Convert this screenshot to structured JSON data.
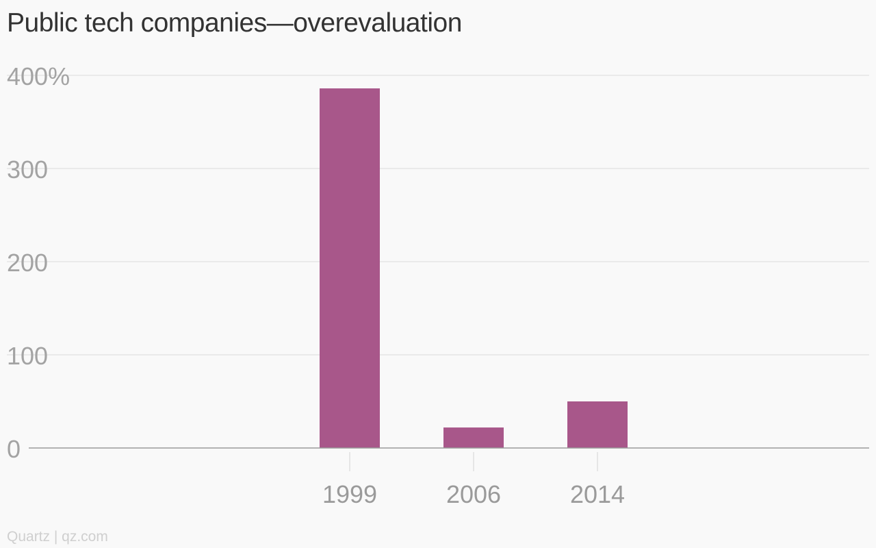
{
  "chart_data": {
    "type": "bar",
    "title": "Public tech companies—overevaluation",
    "categories": [
      "1999",
      "2006",
      "2014"
    ],
    "values": [
      386,
      22,
      50
    ],
    "ylim": [
      0,
      400
    ],
    "yticks": [
      0,
      100,
      200,
      300,
      400
    ],
    "ytick_labels": [
      "0",
      "100",
      "200",
      "300",
      "400%"
    ],
    "xlabel": "",
    "ylabel": "",
    "grid": true,
    "legend": "none",
    "bar_color": "#a8578a",
    "credit": "Quartz | qz.com"
  }
}
